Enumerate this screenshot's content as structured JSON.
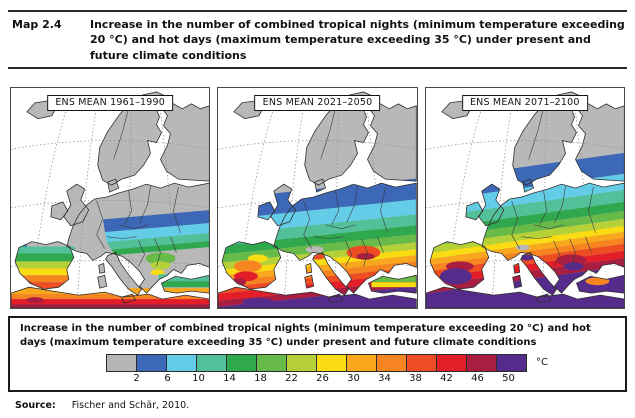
{
  "header": {
    "label": "Map 2.4",
    "title": "Increase in the number of combined tropical nights (minimum temperature exceeding 20 °C) and hot days (maximum temperature exceeding 35 °C) under present and future climate conditions"
  },
  "panels": [
    {
      "label": "ENS MEAN 1961–1990"
    },
    {
      "label": "ENS MEAN 2021–2050"
    },
    {
      "label": "ENS MEAN 2071–2100"
    }
  ],
  "legend": {
    "caption": "Increase in the number of combined tropical nights (minimum temperature exceeding 20 °C) and hot days (maximum temperature exceeding 35 °C) under present and future climate conditions",
    "unit_label": "°C",
    "tick_labels": [
      "2",
      "6",
      "10",
      "14",
      "18",
      "22",
      "26",
      "30",
      "34",
      "38",
      "42",
      "46",
      "50"
    ],
    "colors": [
      "#b5b5b5",
      "#3c68b7",
      "#63cde8",
      "#52c199",
      "#2fa84e",
      "#68ba49",
      "#b6d138",
      "#f9dc11",
      "#f9a71d",
      "#f68420",
      "#ee4c23",
      "#e41e28",
      "#a71e40",
      "#552c8c"
    ],
    "land_color": "#b8b8b8",
    "sea_color": "#ffffff"
  },
  "source": {
    "label": "Source:",
    "text": "Fischer and Schär, 2010."
  }
}
